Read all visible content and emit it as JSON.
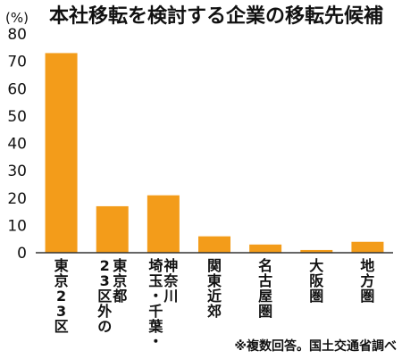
{
  "chart_data": {
    "type": "bar",
    "title": "本社移転を検討する企業の移転先候補",
    "unit_label": "(%)",
    "categories": [
      "東京23区",
      "東京都23区外の",
      "神奈川埼玉・千葉・",
      "関東近郊",
      "名古屋圏",
      "大阪圏",
      "地方圏"
    ],
    "category_columns": [
      [
        "東京23区"
      ],
      [
        "東京都",
        "23区外の"
      ],
      [
        "神奈川",
        "埼玉・千葉・"
      ],
      [
        "関東近郊"
      ],
      [
        "名古屋圏"
      ],
      [
        "大阪圏"
      ],
      [
        "地方圏"
      ]
    ],
    "values": [
      73,
      17,
      21,
      6,
      3,
      1,
      4
    ],
    "ylim": [
      0,
      80
    ],
    "yticks": [
      0,
      10,
      20,
      30,
      40,
      50,
      60,
      70,
      80
    ],
    "grid": false,
    "bar_color": "#f39c1a",
    "note": "※複数回答。国土交通省調べ"
  }
}
